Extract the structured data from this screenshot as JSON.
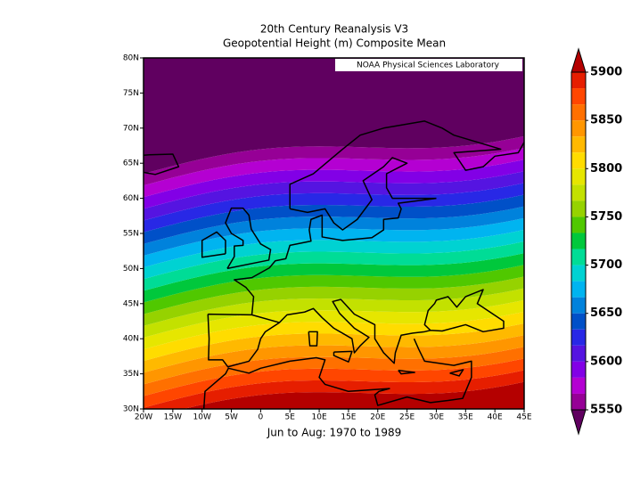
{
  "chart_data": {
    "type": "filled-contour-map",
    "title": "20th Century Reanalysis V3",
    "subtitle": "Geopotential Height (m) Composite Mean",
    "credit": "NOAA Physical Sciences Laboratory",
    "caption": "Jun to Aug: 1970 to 1989",
    "xlim": [
      -20,
      45
    ],
    "ylim": [
      30,
      80
    ],
    "xticks": [
      {
        "value": -20,
        "label": "20W"
      },
      {
        "value": -15,
        "label": "15W"
      },
      {
        "value": -10,
        "label": "10W"
      },
      {
        "value": -5,
        "label": "5W"
      },
      0,
      {
        "value": 5,
        "label": "5E"
      },
      {
        "value": 10,
        "label": "10E"
      },
      {
        "value": 15,
        "label": "15E"
      },
      {
        "value": 20,
        "label": "20E"
      },
      {
        "value": 25,
        "label": "25E"
      },
      {
        "value": 30,
        "label": "30E"
      },
      {
        "value": 35,
        "label": "35E"
      },
      {
        "value": 40,
        "label": "40E"
      },
      {
        "value": 45,
        "label": "45E"
      }
    ],
    "yticks": [
      {
        "value": 30,
        "label": "30N"
      },
      {
        "value": 35,
        "label": "35N"
      },
      {
        "value": 40,
        "label": "40N"
      },
      {
        "value": 45,
        "label": "45N"
      },
      {
        "value": 50,
        "label": "50N"
      },
      {
        "value": 55,
        "label": "55N"
      },
      {
        "value": 60,
        "label": "60N"
      },
      {
        "value": 65,
        "label": "65N"
      },
      {
        "value": 70,
        "label": "70N"
      },
      {
        "value": 75,
        "label": "75N"
      },
      {
        "value": 80,
        "label": "80N"
      }
    ],
    "colorbar_lim": [
      5550,
      5900
    ],
    "colorbar_ticks": [
      5550,
      5600,
      5650,
      5700,
      5750,
      5800,
      5850,
      5900
    ],
    "colors": [
      "#b40000",
      "#e61e00",
      "#ff4600",
      "#ff7000",
      "#ff9600",
      "#ffb900",
      "#ffdc00",
      "#e6e600",
      "#c3e100",
      "#96d200",
      "#50c800",
      "#00c83c",
      "#00dc96",
      "#00d2d2",
      "#00b4f0",
      "#0082dc",
      "#0050c8",
      "#2828e6",
      "#5514e1",
      "#8200e6",
      "#b400d2",
      "#960096",
      "#600060"
    ]
  }
}
